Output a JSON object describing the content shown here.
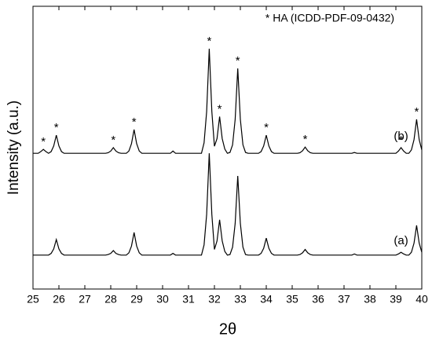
{
  "chart_data": {
    "type": "line",
    "xlabel": "2θ",
    "ylabel": "Intensity (a.u.)",
    "annotation": "* HA (ICDD-PDF-09-0432)",
    "peak_markers": {
      "label": "*",
      "series": 1,
      "x": [
        25.4,
        25.9,
        28.1,
        28.9,
        31.8,
        32.2,
        32.9,
        34.0,
        35.5,
        39.2,
        39.8
      ]
    },
    "xlim": [
      25,
      40
    ],
    "ylim": [
      0,
      100
    ],
    "xticks": [
      25,
      26,
      27,
      28,
      29,
      30,
      31,
      32,
      33,
      34,
      35,
      36,
      37,
      38,
      39,
      40
    ],
    "x": [
      25,
      25.1,
      25.2,
      25.3,
      25.4,
      25.5,
      25.6,
      25.7,
      25.8,
      25.9,
      26,
      26.1,
      26.2,
      26.3,
      26.4,
      26.5,
      26.6,
      26.7,
      26.8,
      26.9,
      27,
      27.1,
      27.2,
      27.3,
      27.4,
      27.5,
      27.6,
      27.7,
      27.8,
      27.9,
      28,
      28.1,
      28.2,
      28.3,
      28.4,
      28.5,
      28.6,
      28.7,
      28.8,
      28.9,
      29,
      29.1,
      29.2,
      29.3,
      29.4,
      29.5,
      29.6,
      29.7,
      29.8,
      29.9,
      30,
      30.1,
      30.2,
      30.3,
      30.4,
      30.5,
      30.6,
      30.7,
      30.8,
      30.9,
      31,
      31.1,
      31.2,
      31.3,
      31.4,
      31.5,
      31.6,
      31.7,
      31.8,
      31.9,
      32,
      32.1,
      32.2,
      32.3,
      32.4,
      32.5,
      32.6,
      32.7,
      32.8,
      32.9,
      33,
      33.1,
      33.2,
      33.3,
      33.4,
      33.5,
      33.6,
      33.7,
      33.8,
      33.9,
      34,
      34.1,
      34.2,
      34.3,
      34.4,
      34.5,
      34.6,
      34.7,
      34.8,
      34.9,
      35,
      35.1,
      35.2,
      35.3,
      35.4,
      35.5,
      35.6,
      35.7,
      35.8,
      35.9,
      36,
      36.1,
      36.2,
      36.3,
      36.4,
      36.5,
      36.6,
      36.7,
      36.8,
      36.9,
      37,
      37.1,
      37.2,
      37.3,
      37.4,
      37.5,
      37.6,
      37.7,
      37.8,
      37.9,
      38,
      38.1,
      38.2,
      38.3,
      38.4,
      38.5,
      38.6,
      38.7,
      38.8,
      38.9,
      39,
      39.1,
      39.2,
      39.3,
      39.4,
      39.5,
      39.6,
      39.7,
      39.8,
      39.9,
      40
    ],
    "series": [
      {
        "name": "(a)",
        "color": "#000000",
        "values": [
          12,
          12,
          12,
          12,
          12,
          12,
          12,
          12.6,
          14.2,
          17.5,
          14.2,
          12.6,
          12,
          12,
          12,
          12,
          12,
          12,
          12,
          12,
          12,
          12,
          12,
          12,
          12,
          12,
          12,
          12,
          12,
          12.2,
          12.6,
          13.6,
          12.6,
          12.2,
          12,
          12,
          12,
          12.8,
          15.2,
          20,
          15.2,
          12.8,
          12,
          12,
          12,
          12,
          12,
          12,
          12,
          12,
          12,
          12,
          12,
          12,
          12.6,
          12,
          12,
          12,
          12,
          12,
          12,
          12,
          12,
          12,
          12,
          12,
          15.6,
          26.4,
          48,
          26.4,
          14,
          17,
          24.5,
          17,
          13.3,
          12,
          12.2,
          14.8,
          23.2,
          40,
          23.2,
          14.8,
          12.2,
          12,
          12,
          12,
          12,
          12,
          12.6,
          14.4,
          18,
          14.4,
          12.6,
          12,
          12,
          12,
          12,
          12,
          12,
          12,
          12,
          12,
          12,
          12.2,
          12.8,
          14,
          12.8,
          12.2,
          12,
          12,
          12,
          12,
          12,
          12,
          12,
          12,
          12,
          12,
          12,
          12,
          12,
          12,
          12,
          12,
          12.4,
          12,
          12,
          12,
          12,
          12,
          12,
          12,
          12,
          12,
          12,
          12,
          12,
          12,
          12,
          12,
          12,
          12.4,
          13,
          12.4,
          12,
          12,
          13,
          16.2,
          22.5,
          16.2,
          13
        ]
      },
      {
        "name": "(b)",
        "color": "#000000",
        "values": [
          48,
          48,
          48,
          48.6,
          49.4,
          48.6,
          48,
          48.6,
          50.6,
          54.4,
          50.6,
          48.6,
          48,
          48,
          48,
          48,
          48,
          48,
          48,
          48,
          48,
          48,
          48,
          48,
          48,
          48,
          48,
          48,
          48,
          48.2,
          48.8,
          50,
          48.8,
          48.2,
          48,
          48,
          48,
          48.8,
          51.4,
          56.4,
          51.4,
          48.8,
          48,
          48,
          48,
          48,
          48,
          48,
          48,
          48,
          48,
          48,
          48,
          48,
          48.8,
          48,
          48,
          48,
          48,
          48,
          48,
          48,
          48,
          48,
          48,
          48,
          51.7,
          62.8,
          85,
          62.8,
          50.5,
          53.2,
          61,
          53.2,
          49.5,
          48,
          48.3,
          51,
          60,
          78,
          60,
          51,
          48.3,
          48,
          48,
          48,
          48,
          48,
          48.6,
          50.6,
          54.4,
          50.6,
          48.6,
          48,
          48,
          48,
          48,
          48,
          48,
          48,
          48,
          48,
          48,
          48.2,
          48.9,
          50.2,
          48.9,
          48.2,
          48,
          48,
          48,
          48,
          48,
          48,
          48,
          48,
          48,
          48,
          48,
          48,
          48,
          48,
          48,
          48,
          48.3,
          48,
          48,
          48,
          48,
          48,
          48,
          48,
          48,
          48,
          48,
          48,
          48,
          48,
          48,
          48,
          48,
          48.8,
          50,
          48.8,
          48,
          48,
          49.2,
          52.8,
          60,
          52.8,
          49.2
        ]
      }
    ]
  }
}
